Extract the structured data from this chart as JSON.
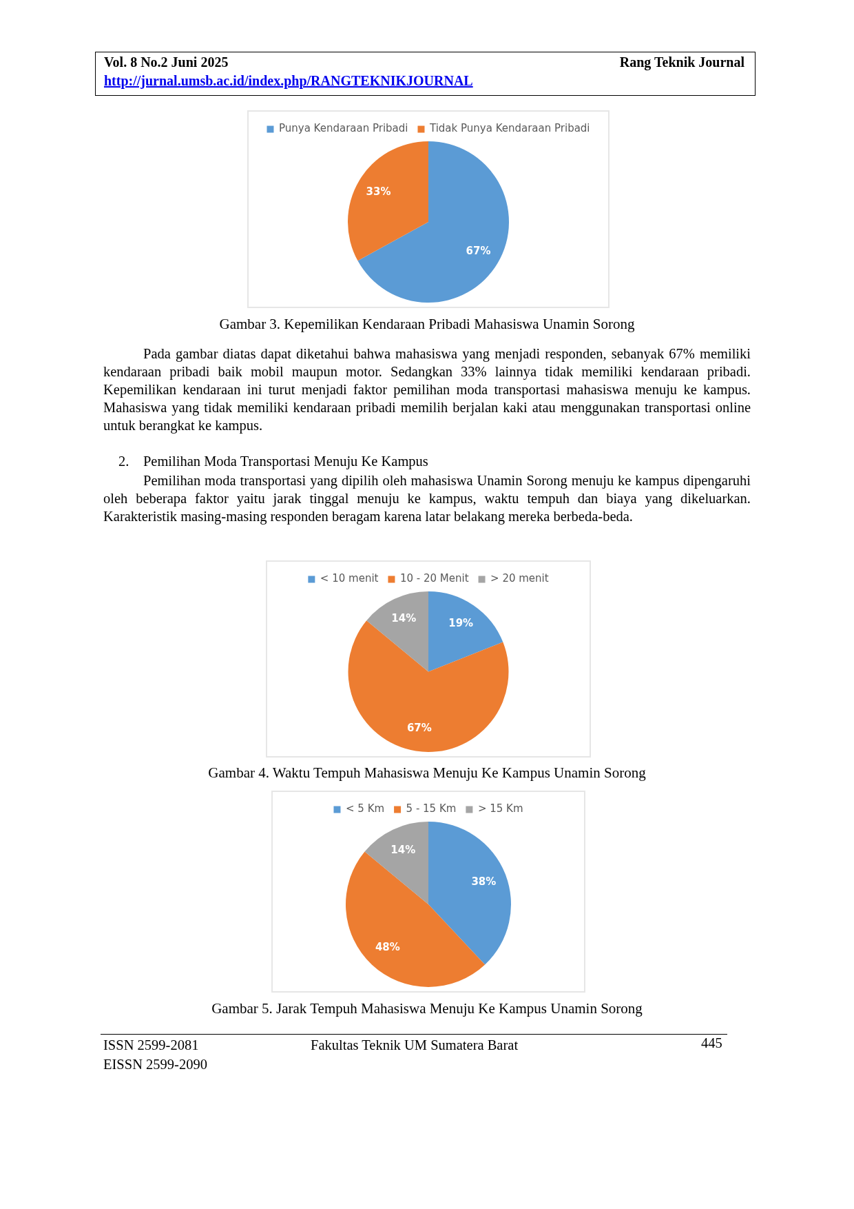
{
  "chart_data": [
    {
      "type": "pie",
      "title": "Gambar 3. Kepemilikan Kendaraan Pribadi Mahasiswa Unamin Sorong",
      "categories": [
        "Punya Kendaraan Pribadi",
        "Tidak Punya Kendaraan Pribadi"
      ],
      "values": [
        67,
        33
      ],
      "colors": [
        "#5b9bd5",
        "#ed7d31"
      ],
      "value_labels": [
        "67%",
        "33%"
      ],
      "legend": "top",
      "annotations": [
        "Vol. 8 No.2 Juni 2025",
        "Rang Teknik Journal",
        "http://jurnal.umsb.ac.id/index.php/RANGTEKNIKJOURNAL",
        "Pada gambar diatas dapat diketahui bahwa mahasiswa yang menjadi responden, sebanyak 67% memiliki kendaraan pribadi baik mobil maupun motor. Sedangkan 33% lainnya tidak memiliki kendaraan pribadi. Kepemilikan kendaraan ini turut menjadi faktor pemilihan moda transportasi mahasiswa menuju ke kampus. Mahasiswa yang tidak memiliki kendaraan pribadi memilih berjalan kaki atau menggunakan transportasi online untuk berangkat ke kampus.",
        "2. Pemilihan Moda Transportasi Menuju Ke Kampus",
        "Pemilihan moda transportasi yang dipilih oleh mahasiswa Unamin Sorong menuju ke kampus dipengaruhi oleh beberapa faktor yaitu jarak tinggal menuju ke kampus, waktu tempuh dan biaya yang dikeluarkan. Karakteristik masing-masing responden beragam karena latar belakang mereka berbeda-beda."
      ]
    },
    {
      "type": "pie",
      "title": "Gambar 4. Waktu Tempuh Mahasiswa Menuju Ke Kampus Unamin Sorong",
      "categories": [
        "< 10 menit",
        "10 - 20 Menit",
        "> 20 menit"
      ],
      "values": [
        19,
        67,
        14
      ],
      "colors": [
        "#5b9bd5",
        "#ed7d31",
        "#a5a5a5"
      ],
      "value_labels": [
        "19%",
        "67%",
        "14%"
      ],
      "legend": "top"
    },
    {
      "type": "pie",
      "title": "Gambar 5. Jarak Tempuh Mahasiswa Menuju Ke Kampus Unamin Sorong",
      "categories": [
        "< 5 Km",
        "5 - 15 Km",
        "> 15 Km"
      ],
      "values": [
        38,
        48,
        14
      ],
      "colors": [
        "#5b9bd5",
        "#ed7d31",
        "#a5a5a5"
      ],
      "value_labels": [
        "38%",
        "48%",
        "14%"
      ],
      "legend": "top",
      "annotations": [
        "ISSN 2599-2081",
        "EISSN 2599-2090",
        "Fakultas Teknik UM Sumatera Barat",
        "445"
      ]
    }
  ]
}
